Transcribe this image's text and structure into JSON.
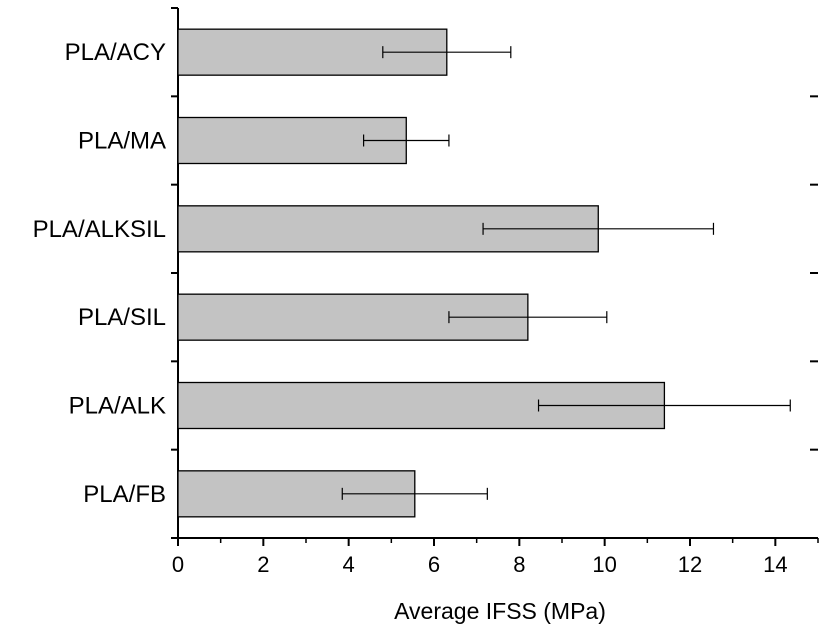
{
  "chart_data": {
    "type": "bar",
    "orientation": "horizontal",
    "categories": [
      "PLA/ACY",
      "PLA/MA",
      "PLA/ALKSIL",
      "PLA/SIL",
      "PLA/ALK",
      "PLA/FB"
    ],
    "values": [
      6.3,
      5.35,
      9.85,
      8.2,
      11.4,
      5.55
    ],
    "errors": [
      1.5,
      1.0,
      2.7,
      1.85,
      2.95,
      1.7
    ],
    "xlabel": "Average IFSS (MPa)",
    "ylabel": "",
    "xlim": [
      0,
      15
    ],
    "x_ticks": [
      "0",
      "2",
      "4",
      "6",
      "8",
      "10",
      "12",
      "14"
    ],
    "x_minor_step": 1,
    "grid": false,
    "legend": "none",
    "colors": {
      "bar_fill": "#c3c3c3",
      "bar_stroke": "#000000",
      "axis": "#000000",
      "watermark": "#e8e8e8"
    }
  }
}
